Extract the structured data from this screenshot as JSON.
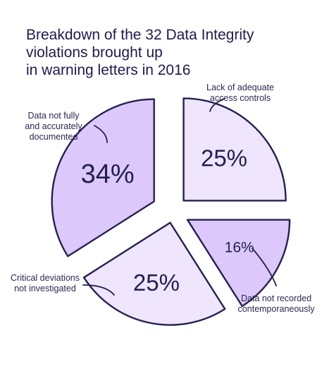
{
  "title_lines": [
    "Breakdown of the 32 Data Integrity",
    "violations brought up",
    "in warning letters in 2016"
  ],
  "colors": {
    "outline": "#23214f",
    "slice_dark": "#dcc8fb",
    "slice_light": "#efe5fd"
  },
  "chart_data": {
    "type": "pie",
    "title": "Breakdown of the 32 Data Integrity violations brought up in warning letters in 2016",
    "slices": [
      {
        "label": "Lack of adequate access controls",
        "label_lines": [
          "Lack of adequate",
          "access controls"
        ],
        "value": 25,
        "display": "25%",
        "color": "#efe5fd"
      },
      {
        "label": "Data not recorded contemporaneously",
        "label_lines": [
          "Data not recorded",
          "contemporaneously"
        ],
        "value": 16,
        "display": "16%",
        "color": "#dcc8fb"
      },
      {
        "label": "Critical deviations not investigated",
        "label_lines": [
          "Critical deviations",
          "not investigated"
        ],
        "value": 25,
        "display": "25%",
        "color": "#efe5fd"
      },
      {
        "label": "Data not fully and accurately documented",
        "label_lines": [
          "Data not fully",
          "and accurately",
          "documented"
        ],
        "value": 34,
        "display": "34%",
        "color": "#dcc8fb"
      }
    ]
  }
}
